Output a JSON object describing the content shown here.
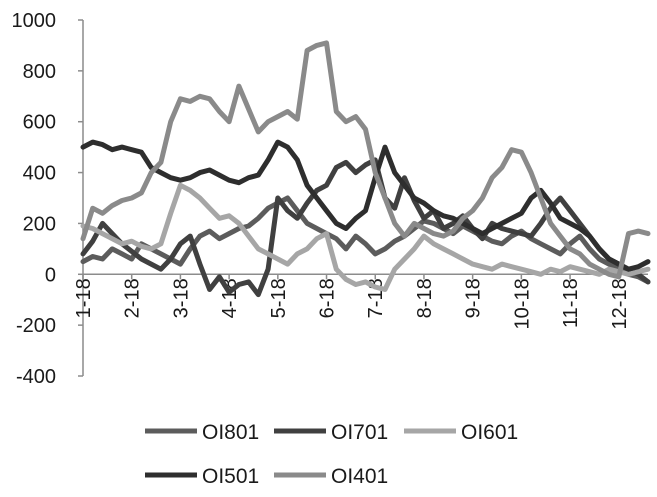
{
  "chart_data": {
    "type": "line",
    "title": "",
    "xlabel": "",
    "ylabel": "",
    "ylim": [
      -400,
      1000
    ],
    "yticks": [
      -400,
      -200,
      0,
      200,
      400,
      600,
      800,
      1000
    ],
    "x_tick_labels": [
      "1-18",
      "2-18",
      "3-18",
      "4-18",
      "5-18",
      "6-18",
      "7-18",
      "8-18",
      "9-18",
      "10-18",
      "11-18",
      "12-18"
    ],
    "x_tick_positions": [
      0,
      1,
      2,
      3,
      4,
      5,
      6,
      7,
      8,
      9,
      10,
      11
    ],
    "xlim": [
      0,
      11.6
    ],
    "grid": false,
    "legend_position": "bottom",
    "series": [
      {
        "name": "OI801",
        "color": "#5c5c5c",
        "x": [
          0,
          0.2,
          0.4,
          0.6,
          0.8,
          1.0,
          1.2,
          1.4,
          1.6,
          1.8,
          2.0,
          2.2,
          2.4,
          2.6,
          2.8,
          3.0,
          3.2,
          3.4,
          3.6,
          3.8,
          4.0,
          4.2,
          4.4,
          4.6,
          4.8,
          5.0,
          5.2,
          5.4,
          5.6,
          5.8,
          6.0,
          6.2,
          6.4,
          6.6,
          6.8,
          7.0,
          7.2,
          7.4,
          7.6,
          7.8,
          8.0,
          8.2,
          8.4,
          8.6,
          8.8,
          9.0,
          9.2,
          9.4,
          9.6,
          9.8,
          10.0,
          10.2,
          10.4,
          10.6,
          10.8,
          11.0,
          11.2,
          11.4,
          11.6
        ],
        "values": [
          50,
          70,
          60,
          100,
          80,
          60,
          120,
          100,
          80,
          60,
          40,
          100,
          150,
          170,
          140,
          160,
          180,
          190,
          220,
          260,
          280,
          300,
          250,
          200,
          180,
          160,
          140,
          100,
          150,
          120,
          80,
          100,
          130,
          150,
          180,
          210,
          200,
          180,
          160,
          190,
          170,
          150,
          130,
          120,
          150,
          170,
          140,
          120,
          100,
          80,
          120,
          150,
          100,
          60,
          40,
          20,
          0,
          -10,
          -30
        ]
      },
      {
        "name": "OI701",
        "color": "#404040",
        "x": [
          0,
          0.2,
          0.4,
          0.6,
          0.8,
          1.0,
          1.2,
          1.4,
          1.6,
          1.8,
          2.0,
          2.2,
          2.4,
          2.6,
          2.8,
          3.0,
          3.2,
          3.4,
          3.6,
          3.8,
          4.0,
          4.2,
          4.4,
          4.6,
          4.8,
          5.0,
          5.2,
          5.4,
          5.6,
          5.8,
          6.0,
          6.2,
          6.4,
          6.6,
          6.8,
          7.0,
          7.2,
          7.4,
          7.6,
          7.8,
          8.0,
          8.2,
          8.4,
          8.6,
          8.8,
          9.0,
          9.2,
          9.4,
          9.6,
          9.8,
          10.0,
          10.2,
          10.4,
          10.6,
          10.8,
          11.0,
          11.2,
          11.4,
          11.6
        ],
        "values": [
          80,
          130,
          200,
          160,
          120,
          90,
          60,
          40,
          20,
          60,
          120,
          150,
          40,
          -60,
          -10,
          -70,
          -40,
          -30,
          -80,
          20,
          300,
          250,
          220,
          280,
          330,
          350,
          420,
          440,
          400,
          430,
          450,
          300,
          260,
          380,
          290,
          220,
          250,
          180,
          200,
          230,
          180,
          140,
          200,
          180,
          170,
          160,
          150,
          200,
          260,
          300,
          250,
          200,
          150,
          100,
          60,
          40,
          20,
          0,
          -30
        ]
      },
      {
        "name": "OI601",
        "color": "#a6a6a6",
        "x": [
          0,
          0.2,
          0.4,
          0.6,
          0.8,
          1.0,
          1.2,
          1.4,
          1.6,
          1.8,
          2.0,
          2.2,
          2.4,
          2.6,
          2.8,
          3.0,
          3.2,
          3.4,
          3.6,
          3.8,
          4.0,
          4.2,
          4.4,
          4.6,
          4.8,
          5.0,
          5.2,
          5.4,
          5.6,
          5.8,
          6.0,
          6.2,
          6.4,
          6.6,
          6.8,
          7.0,
          7.2,
          7.4,
          7.6,
          7.8,
          8.0,
          8.2,
          8.4,
          8.6,
          8.8,
          9.0,
          9.2,
          9.4,
          9.6,
          9.8,
          10.0,
          10.2,
          10.4,
          10.6,
          10.8,
          11.0,
          11.2,
          11.4,
          11.6
        ],
        "values": [
          190,
          180,
          160,
          140,
          120,
          130,
          110,
          100,
          120,
          240,
          350,
          330,
          300,
          260,
          220,
          230,
          200,
          150,
          100,
          80,
          60,
          40,
          80,
          100,
          140,
          160,
          20,
          -20,
          -40,
          -30,
          -50,
          -60,
          20,
          60,
          100,
          150,
          120,
          100,
          80,
          60,
          40,
          30,
          20,
          40,
          30,
          20,
          10,
          0,
          20,
          10,
          30,
          20,
          10,
          0,
          20,
          10,
          0,
          10,
          20
        ]
      },
      {
        "name": "OI501",
        "color": "#2e2e2e",
        "x": [
          0,
          0.2,
          0.4,
          0.6,
          0.8,
          1.0,
          1.2,
          1.4,
          1.6,
          1.8,
          2.0,
          2.2,
          2.4,
          2.6,
          2.8,
          3.0,
          3.2,
          3.4,
          3.6,
          3.8,
          4.0,
          4.2,
          4.4,
          4.6,
          4.8,
          5.0,
          5.2,
          5.4,
          5.6,
          5.8,
          6.0,
          6.2,
          6.4,
          6.6,
          6.8,
          7.0,
          7.2,
          7.4,
          7.6,
          7.8,
          8.0,
          8.2,
          8.4,
          8.6,
          8.8,
          9.0,
          9.2,
          9.4,
          9.6,
          9.8,
          10.0,
          10.2,
          10.4,
          10.6,
          10.8,
          11.0,
          11.2,
          11.4,
          11.6
        ],
        "values": [
          500,
          520,
          510,
          490,
          500,
          490,
          480,
          420,
          400,
          380,
          370,
          380,
          400,
          410,
          390,
          370,
          360,
          380,
          390,
          450,
          520,
          500,
          450,
          350,
          300,
          250,
          200,
          180,
          220,
          250,
          380,
          500,
          400,
          350,
          300,
          280,
          250,
          230,
          220,
          200,
          180,
          160,
          180,
          200,
          220,
          240,
          300,
          330,
          280,
          220,
          200,
          180,
          150,
          100,
          60,
          40,
          20,
          30,
          50
        ]
      },
      {
        "name": "OI401",
        "color": "#8a8a8a",
        "x": [
          0,
          0.2,
          0.4,
          0.6,
          0.8,
          1.0,
          1.2,
          1.4,
          1.6,
          1.8,
          2.0,
          2.2,
          2.4,
          2.6,
          2.8,
          3.0,
          3.2,
          3.4,
          3.6,
          3.8,
          4.0,
          4.2,
          4.4,
          4.6,
          4.8,
          5.0,
          5.2,
          5.4,
          5.6,
          5.8,
          6.0,
          6.2,
          6.4,
          6.6,
          6.8,
          7.0,
          7.2,
          7.4,
          7.6,
          7.8,
          8.0,
          8.2,
          8.4,
          8.6,
          8.8,
          9.0,
          9.2,
          9.4,
          9.6,
          9.8,
          10.0,
          10.2,
          10.4,
          10.6,
          10.8,
          11.0,
          11.2,
          11.4,
          11.6
        ],
        "values": [
          140,
          260,
          240,
          270,
          290,
          300,
          320,
          400,
          440,
          600,
          690,
          680,
          700,
          690,
          640,
          600,
          740,
          650,
          560,
          600,
          620,
          640,
          610,
          880,
          900,
          910,
          640,
          600,
          620,
          570,
          400,
          300,
          200,
          150,
          200,
          180,
          160,
          150,
          170,
          220,
          250,
          300,
          380,
          420,
          490,
          480,
          400,
          300,
          200,
          150,
          100,
          80,
          40,
          20,
          0,
          -10,
          160,
          170,
          160
        ]
      }
    ]
  }
}
